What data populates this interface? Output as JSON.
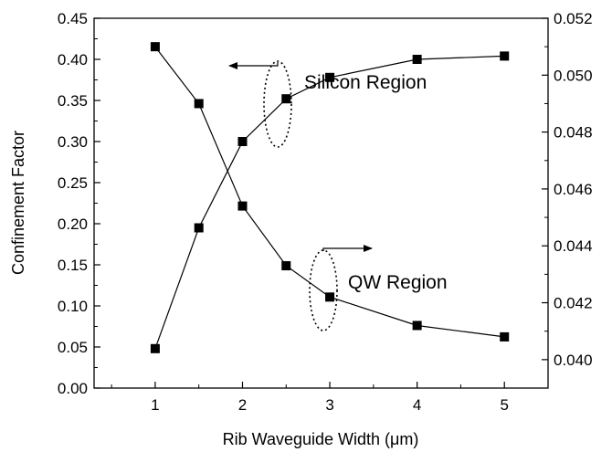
{
  "chart_data": {
    "type": "line",
    "xlabel": "Rib Waveguide Width (μm)",
    "ylabel": "Confinement Factor",
    "x_ticks": [
      "1",
      "2",
      "3",
      "4",
      "5"
    ],
    "xlim": [
      0.3,
      5.5
    ],
    "y_left": {
      "lim": [
        0,
        0.45
      ],
      "ticks": [
        "0.00",
        "0.05",
        "0.10",
        "0.15",
        "0.20",
        "0.25",
        "0.30",
        "0.35",
        "0.40",
        "0.45"
      ]
    },
    "y_right": {
      "lim": [
        0.039,
        0.052
      ],
      "ticks": [
        "0.040",
        "0.042",
        "0.044",
        "0.046",
        "0.048",
        "0.050",
        "0.052"
      ]
    },
    "series": [
      {
        "name": "Silicon Region",
        "axis": "left",
        "x": [
          1,
          1.5,
          2,
          2.5,
          3,
          4,
          5
        ],
        "y": [
          0.048,
          0.195,
          0.3,
          0.352,
          0.378,
          0.4,
          0.404
        ]
      },
      {
        "name": "QW Region",
        "axis": "right",
        "x": [
          1,
          1.5,
          2,
          2.5,
          3,
          4,
          5
        ],
        "y": [
          0.051,
          0.049,
          0.0454,
          0.0433,
          0.0422,
          0.0412,
          0.0408
        ]
      }
    ],
    "annotations": [
      {
        "text": "Silicon Region",
        "points_to": "left axis"
      },
      {
        "text": "QW Region",
        "points_to": "right axis"
      }
    ]
  }
}
